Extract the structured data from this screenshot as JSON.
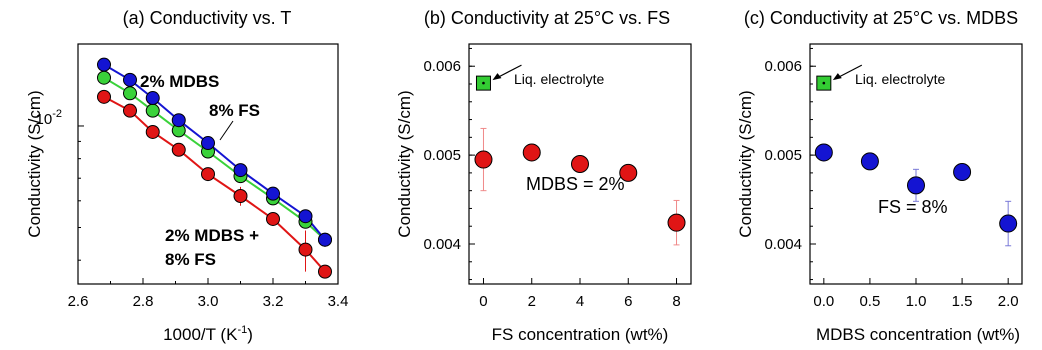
{
  "colors": {
    "blue": "#1414d2",
    "green": "#3ad23a",
    "red": "#e01515",
    "black": "#000000",
    "liq_green": "#33cc33"
  },
  "chart_data": [
    {
      "type": "line",
      "title": "(a) Conductivity vs. T",
      "xlabel": "1000/T (K",
      "xlabel_sup": "-1",
      "xlabel_end": ")",
      "ylabel": "Conductivity (S/cm)",
      "xlim": [
        2.6,
        3.4
      ],
      "ylim": [
        0.0034,
        0.0175
      ],
      "yscale": "log",
      "x_ticks": [
        2.6,
        2.8,
        3.0,
        3.2,
        3.4
      ],
      "x_tick_labels": [
        "2.6",
        "2.8",
        "3.0",
        "3.2",
        "3.4"
      ],
      "y_major_tick": 0.01,
      "y_major_tick_label": "10",
      "y_major_tick_sup": "-2",
      "series": [
        {
          "name": "2% MDBS",
          "color_key": "blue",
          "x": [
            2.68,
            2.76,
            2.83,
            2.91,
            3.0,
            3.1,
            3.2,
            3.3,
            3.36
          ],
          "y": [
            0.0152,
            0.0137,
            0.0121,
            0.0104,
            0.0089,
            0.0074,
            0.0063,
            0.0054,
            0.0046
          ]
        },
        {
          "name": "8% FS",
          "color_key": "green",
          "x": [
            2.68,
            2.76,
            2.83,
            2.91,
            3.0,
            3.1,
            3.2,
            3.3,
            3.36
          ],
          "y": [
            0.0139,
            0.0125,
            0.0111,
            0.0097,
            0.0084,
            0.0071,
            0.0061,
            0.0052,
            0.0046
          ]
        },
        {
          "name": "2% MDBS + 8% FS",
          "name_line1": "2% MDBS +",
          "name_line2": "8% FS",
          "color_key": "red",
          "x": [
            2.68,
            2.76,
            2.83,
            2.91,
            3.0,
            3.1,
            3.2,
            3.3,
            3.36
          ],
          "y": [
            0.0122,
            0.0111,
            0.0096,
            0.0085,
            0.0072,
            0.0062,
            0.0053,
            0.0043,
            0.0037
          ],
          "err": [
            0,
            0,
            0,
            0,
            0,
            0.0004,
            0,
            0.0006,
            0
          ]
        }
      ]
    },
    {
      "type": "scatter",
      "title": "(b) Conductivity at 25°C vs. FS",
      "xlabel": "FS concentration (wt%)",
      "ylabel": "Conductivity (S/cm)",
      "xlim": [
        -0.6,
        8.6
      ],
      "ylim": [
        0.00355,
        0.00625
      ],
      "x_ticks": [
        0,
        2,
        4,
        6,
        8
      ],
      "x_tick_labels": [
        "0",
        "2",
        "4",
        "6",
        "8"
      ],
      "y_ticks": [
        0.004,
        0.005,
        0.006
      ],
      "y_tick_labels": [
        "0.004",
        "0.005",
        "0.006"
      ],
      "series": [
        {
          "name": "MDBS = 2%",
          "color_key": "red",
          "x": [
            0,
            2,
            4,
            6,
            8
          ],
          "y": [
            0.00495,
            0.00503,
            0.0049,
            0.0048,
            0.00424
          ],
          "err": [
            0.00035,
            0,
            0,
            0,
            0.00025
          ]
        }
      ],
      "reference": {
        "label": "Liq. electrolyte",
        "x": 0,
        "y": 0.00581,
        "color_key": "liq_green"
      }
    },
    {
      "type": "scatter",
      "title": "(c) Conductivity at 25°C vs. MDBS",
      "xlabel": "MDBS concentration (wt%)",
      "ylabel": "Conductivity (S/cm)",
      "xlim": [
        -0.15,
        2.15
      ],
      "ylim": [
        0.00355,
        0.00625
      ],
      "x_ticks": [
        0.0,
        0.5,
        1.0,
        1.5,
        2.0
      ],
      "x_tick_labels": [
        "0.0",
        "0.5",
        "1.0",
        "1.5",
        "2.0"
      ],
      "y_ticks": [
        0.004,
        0.005,
        0.006
      ],
      "y_tick_labels": [
        "0.004",
        "0.005",
        "0.006"
      ],
      "series": [
        {
          "name": "FS = 8%",
          "color_key": "blue",
          "x": [
            0.0,
            0.5,
            1.0,
            1.5,
            2.0
          ],
          "y": [
            0.00503,
            0.00493,
            0.00466,
            0.00481,
            0.00423
          ],
          "err": [
            0,
            0,
            0.00018,
            0,
            0.00025
          ]
        }
      ],
      "reference": {
        "label": "Liq. electrolyte",
        "x": 0.0,
        "y": 0.00581,
        "color_key": "liq_green"
      }
    }
  ]
}
